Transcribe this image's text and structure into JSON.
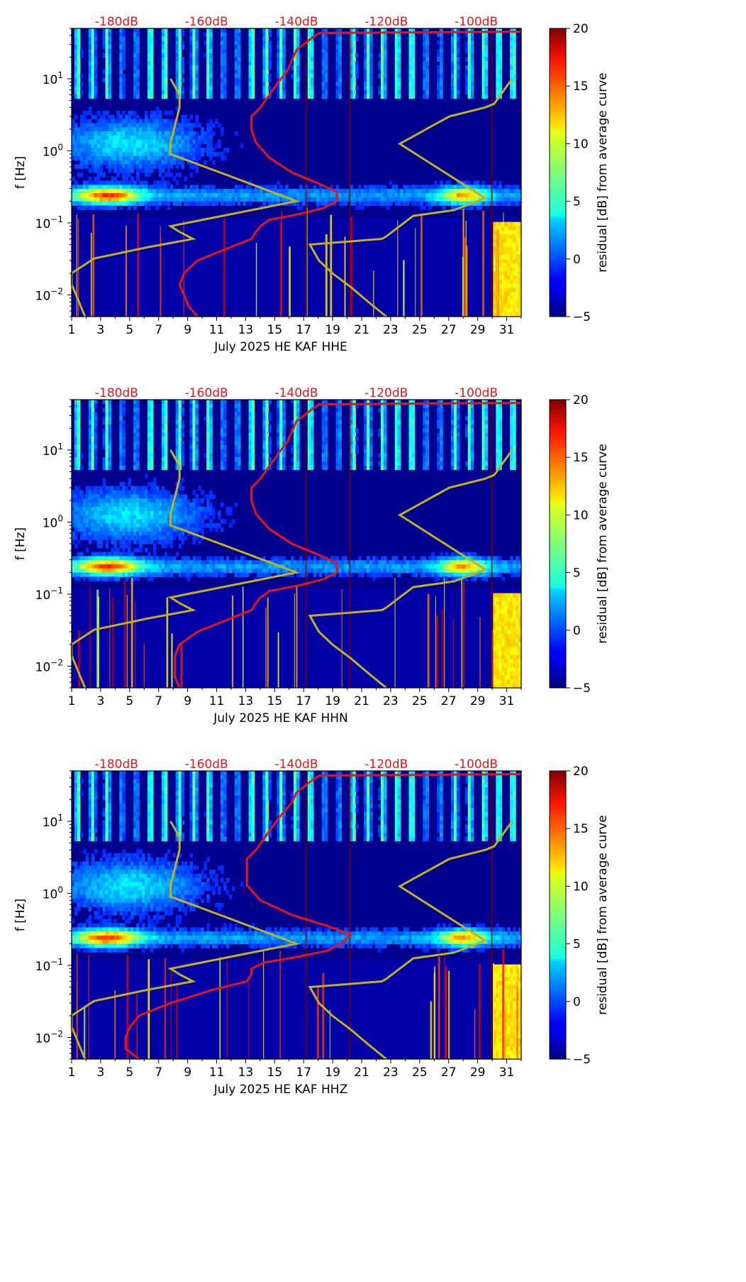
{
  "chart_data": [
    {
      "type": "heatmap",
      "title": "",
      "xlabel": "July 2025 HE KAF  HHE",
      "ylabel": "f [Hz]",
      "x_ticks": [
        "1",
        "3",
        "5",
        "7",
        "9",
        "11",
        "13",
        "15",
        "17",
        "19",
        "21",
        "23",
        "25",
        "27",
        "29",
        "31"
      ],
      "xlim": [
        1,
        32
      ],
      "ylim": [
        0.005,
        50
      ],
      "y_ticks": [
        {
          "value": 0.01,
          "base": "10",
          "exp": "−2"
        },
        {
          "value": 0.1,
          "base": "10",
          "exp": "−1"
        },
        {
          "value": 1,
          "base": "10",
          "exp": "0"
        },
        {
          "value": 10,
          "base": "10",
          "exp": "1"
        }
      ],
      "top_axis_labels": [
        "-180dB",
        "-160dB",
        "-140dB",
        "-120dB",
        "-100dB"
      ],
      "top_axis_values": [
        -180,
        -160,
        -140,
        -120,
        -100
      ],
      "top_axis_range": [
        -190,
        -90
      ],
      "colorbar": {
        "label": "residual [dB] from average curve",
        "min": -5,
        "max": 20,
        "ticks": [
          "−5",
          "0",
          "5",
          "10",
          "15",
          "20"
        ]
      },
      "series": [
        {
          "name": "average PSD",
          "color": "#e8141a",
          "points": [
            [
              -162,
              0.005
            ],
            [
              -164,
              0.007
            ],
            [
              -165,
              0.01
            ],
            [
              -166,
              0.014
            ],
            [
              -165,
              0.02
            ],
            [
              -162,
              0.03
            ],
            [
              -155,
              0.045
            ],
            [
              -150,
              0.06
            ],
            [
              -149,
              0.075
            ],
            [
              -148,
              0.09
            ],
            [
              -146,
              0.11
            ],
            [
              -140,
              0.13
            ],
            [
              -134,
              0.16
            ],
            [
              -131,
              0.2
            ],
            [
              -131,
              0.27
            ],
            [
              -135,
              0.35
            ],
            [
              -141,
              0.5
            ],
            [
              -146,
              0.8
            ],
            [
              -149,
              1.3
            ],
            [
              -150,
              2
            ],
            [
              -150,
              3
            ],
            [
              -148,
              4
            ],
            [
              -146,
              6
            ],
            [
              -144,
              9
            ],
            [
              -142,
              13
            ],
            [
              -141,
              18
            ],
            [
              -140,
              25
            ],
            [
              -137,
              35
            ],
            [
              -135,
              43
            ],
            [
              -90,
              45
            ]
          ]
        },
        {
          "name": "Peterson NLNM",
          "color": "#c3b022",
          "points": [
            [
              -187,
              0.005
            ],
            [
              -188,
              0.007
            ],
            [
              -189,
              0.01
            ],
            [
              -190,
              0.014
            ],
            [
              -190,
              0.02
            ],
            [
              -185,
              0.032
            ],
            [
              -173,
              0.046
            ],
            [
              -163,
              0.06
            ],
            [
              -166,
              0.075
            ],
            [
              -168,
              0.09
            ],
            [
              -140,
              0.2
            ],
            [
              -155,
              0.45
            ],
            [
              -168,
              0.9
            ],
            [
              -168,
              1.3
            ],
            [
              -166,
              4
            ],
            [
              -166,
              6
            ],
            [
              -168,
              10
            ]
          ]
        },
        {
          "name": "Peterson NHNM",
          "color": "#c3b022",
          "points": [
            [
              -120,
              0.005
            ],
            [
              -124,
              0.008
            ],
            [
              -128,
              0.013
            ],
            [
              -132,
              0.02
            ],
            [
              -135,
              0.03
            ],
            [
              -137,
              0.05
            ],
            [
              -121,
              0.06
            ],
            [
              -120,
              0.065
            ],
            [
              -114,
              0.125
            ],
            [
              -105,
              0.15
            ],
            [
              -98,
              0.22
            ],
            [
              -117,
              1.25
            ],
            [
              -106,
              3
            ],
            [
              -98,
              4
            ],
            [
              -96,
              4.5
            ],
            [
              -92,
              10
            ]
          ]
        }
      ]
    },
    {
      "type": "heatmap",
      "title": "",
      "xlabel": "July 2025 HE KAF  HHN",
      "ylabel": "f [Hz]",
      "x_ticks": [
        "1",
        "3",
        "5",
        "7",
        "9",
        "11",
        "13",
        "15",
        "17",
        "19",
        "21",
        "23",
        "25",
        "27",
        "29",
        "31"
      ],
      "xlim": [
        1,
        32
      ],
      "ylim": [
        0.005,
        50
      ],
      "y_ticks": [
        {
          "value": 0.01,
          "base": "10",
          "exp": "−2"
        },
        {
          "value": 0.1,
          "base": "10",
          "exp": "−1"
        },
        {
          "value": 1,
          "base": "10",
          "exp": "0"
        },
        {
          "value": 10,
          "base": "10",
          "exp": "1"
        }
      ],
      "top_axis_labels": [
        "-180dB",
        "-160dB",
        "-140dB",
        "-120dB",
        "-100dB"
      ],
      "top_axis_values": [
        -180,
        -160,
        -140,
        -120,
        -100
      ],
      "top_axis_range": [
        -190,
        -90
      ],
      "colorbar": {
        "label": "residual [dB] from average curve",
        "min": -5,
        "max": 20,
        "ticks": [
          "−5",
          "0",
          "5",
          "10",
          "15",
          "20"
        ]
      },
      "series": [
        {
          "name": "average PSD",
          "color": "#e8141a",
          "points": [
            [
              -166,
              0.005
            ],
            [
              -167,
              0.007
            ],
            [
              -167,
              0.01
            ],
            [
              -167,
              0.014
            ],
            [
              -166,
              0.02
            ],
            [
              -162,
              0.03
            ],
            [
              -155,
              0.045
            ],
            [
              -150,
              0.06
            ],
            [
              -149,
              0.075
            ],
            [
              -148,
              0.09
            ],
            [
              -146,
              0.11
            ],
            [
              -140,
              0.13
            ],
            [
              -134,
              0.16
            ],
            [
              -131,
              0.2
            ],
            [
              -131,
              0.27
            ],
            [
              -135,
              0.35
            ],
            [
              -141,
              0.5
            ],
            [
              -146,
              0.8
            ],
            [
              -149,
              1.3
            ],
            [
              -150,
              2
            ],
            [
              -150,
              3
            ],
            [
              -148,
              4
            ],
            [
              -146,
              6
            ],
            [
              -144,
              9
            ],
            [
              -142,
              13
            ],
            [
              -141,
              18
            ],
            [
              -140,
              25
            ],
            [
              -137,
              35
            ],
            [
              -135,
              43
            ],
            [
              -90,
              45
            ]
          ]
        },
        {
          "name": "Peterson NLNM",
          "color": "#c3b022",
          "points": [
            [
              -187,
              0.005
            ],
            [
              -188,
              0.007
            ],
            [
              -189,
              0.01
            ],
            [
              -190,
              0.014
            ],
            [
              -190,
              0.02
            ],
            [
              -185,
              0.032
            ],
            [
              -173,
              0.046
            ],
            [
              -163,
              0.06
            ],
            [
              -166,
              0.075
            ],
            [
              -168,
              0.09
            ],
            [
              -140,
              0.2
            ],
            [
              -155,
              0.45
            ],
            [
              -168,
              0.9
            ],
            [
              -168,
              1.3
            ],
            [
              -166,
              4
            ],
            [
              -166,
              6
            ],
            [
              -168,
              10
            ]
          ]
        },
        {
          "name": "Peterson NHNM",
          "color": "#c3b022",
          "points": [
            [
              -120,
              0.005
            ],
            [
              -124,
              0.008
            ],
            [
              -128,
              0.013
            ],
            [
              -132,
              0.02
            ],
            [
              -135,
              0.03
            ],
            [
              -137,
              0.05
            ],
            [
              -121,
              0.06
            ],
            [
              -120,
              0.065
            ],
            [
              -114,
              0.125
            ],
            [
              -105,
              0.15
            ],
            [
              -98,
              0.22
            ],
            [
              -117,
              1.25
            ],
            [
              -106,
              3
            ],
            [
              -98,
              4
            ],
            [
              -96,
              4.5
            ],
            [
              -92,
              10
            ]
          ]
        }
      ]
    },
    {
      "type": "heatmap",
      "title": "",
      "xlabel": "July 2025 HE KAF  HHZ",
      "ylabel": "f [Hz]",
      "x_ticks": [
        "1",
        "3",
        "5",
        "7",
        "9",
        "11",
        "13",
        "15",
        "17",
        "19",
        "21",
        "23",
        "25",
        "27",
        "29",
        "31"
      ],
      "xlim": [
        1,
        32
      ],
      "ylim": [
        0.005,
        50
      ],
      "y_ticks": [
        {
          "value": 0.01,
          "base": "10",
          "exp": "−2"
        },
        {
          "value": 0.1,
          "base": "10",
          "exp": "−1"
        },
        {
          "value": 1,
          "base": "10",
          "exp": "0"
        },
        {
          "value": 10,
          "base": "10",
          "exp": "1"
        }
      ],
      "top_axis_labels": [
        "-180dB",
        "-160dB",
        "-140dB",
        "-120dB",
        "-100dB"
      ],
      "top_axis_values": [
        -180,
        -160,
        -140,
        -120,
        -100
      ],
      "top_axis_range": [
        -190,
        -90
      ],
      "colorbar": {
        "label": "residual [dB] from average curve",
        "min": -5,
        "max": 20,
        "ticks": [
          "−5",
          "0",
          "5",
          "10",
          "15",
          "20"
        ]
      },
      "series": [
        {
          "name": "average PSD",
          "color": "#e8141a",
          "points": [
            [
              -175,
              0.005
            ],
            [
              -178,
              0.007
            ],
            [
              -178,
              0.01
            ],
            [
              -177,
              0.014
            ],
            [
              -175,
              0.02
            ],
            [
              -168,
              0.03
            ],
            [
              -159,
              0.045
            ],
            [
              -151,
              0.06
            ],
            [
              -150,
              0.075
            ],
            [
              -150,
              0.09
            ],
            [
              -147,
              0.11
            ],
            [
              -140,
              0.13
            ],
            [
              -133,
              0.16
            ],
            [
              -130,
              0.2
            ],
            [
              -128,
              0.27
            ],
            [
              -133,
              0.35
            ],
            [
              -141,
              0.5
            ],
            [
              -148,
              0.8
            ],
            [
              -151,
              1.3
            ],
            [
              -151,
              2
            ],
            [
              -151,
              3
            ],
            [
              -149,
              4
            ],
            [
              -147,
              6
            ],
            [
              -145,
              9
            ],
            [
              -143,
              13
            ],
            [
              -141,
              18
            ],
            [
              -140,
              25
            ],
            [
              -137,
              35
            ],
            [
              -135,
              43
            ],
            [
              -90,
              45
            ]
          ]
        },
        {
          "name": "Peterson NLNM",
          "color": "#c3b022",
          "points": [
            [
              -187,
              0.005
            ],
            [
              -188,
              0.007
            ],
            [
              -189,
              0.01
            ],
            [
              -190,
              0.014
            ],
            [
              -190,
              0.02
            ],
            [
              -185,
              0.032
            ],
            [
              -173,
              0.046
            ],
            [
              -163,
              0.06
            ],
            [
              -166,
              0.075
            ],
            [
              -168,
              0.09
            ],
            [
              -140,
              0.2
            ],
            [
              -155,
              0.45
            ],
            [
              -168,
              0.9
            ],
            [
              -168,
              1.3
            ],
            [
              -166,
              4
            ],
            [
              -166,
              6
            ],
            [
              -168,
              10
            ]
          ]
        },
        {
          "name": "Peterson NHNM",
          "color": "#c3b022",
          "points": [
            [
              -120,
              0.005
            ],
            [
              -124,
              0.008
            ],
            [
              -128,
              0.013
            ],
            [
              -132,
              0.02
            ],
            [
              -135,
              0.03
            ],
            [
              -137,
              0.05
            ],
            [
              -121,
              0.06
            ],
            [
              -120,
              0.065
            ],
            [
              -114,
              0.125
            ],
            [
              -105,
              0.15
            ],
            [
              -98,
              0.22
            ],
            [
              -117,
              1.25
            ],
            [
              -106,
              3
            ],
            [
              -98,
              4
            ],
            [
              -96,
              4.5
            ],
            [
              -92,
              10
            ]
          ]
        }
      ]
    }
  ]
}
